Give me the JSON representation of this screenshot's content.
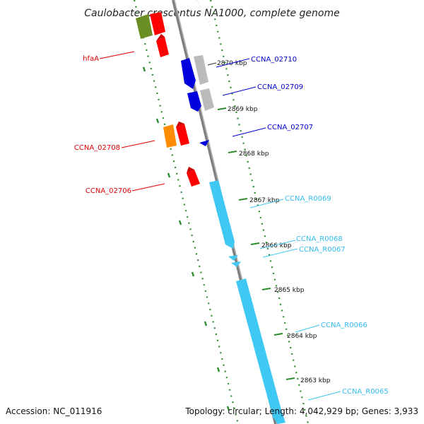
{
  "title": "Caulobacter crescentus NA1000, complete genome",
  "footer": {
    "accession": "Accession: NC_011916",
    "topology": "Topology: circular; Length: 4,042,929 bp; Genes: 3,933"
  },
  "ticks": [
    "2870 kbp",
    "2869 kbp",
    "2868 kbp",
    "2867 kbp",
    "2866 kbp",
    "2865 kbp",
    "2864 kbp",
    "2863 kbp"
  ],
  "labels": {
    "hfaA": "hfaA",
    "CCNA_02708": "CCNA_02708",
    "CCNA_02706": "CCNA_02706",
    "CCNA_02710": "CCNA_02710",
    "CCNA_02709": "CCNA_02709",
    "CCNA_02707": "CCNA_02707",
    "CCNA_R0069": "CCNA_R0069",
    "CCNA_R0068": "CCNA_R0068",
    "CCNA_R0067": "CCNA_R0067",
    "CCNA_R0066": "CCNA_R0066",
    "CCNA_R0065": "CCNA_R0065"
  },
  "colors": {
    "red": "#ff0000",
    "darkred": "#cc0000",
    "olive": "#6b8e23",
    "orange": "#ff8c00",
    "blue": "#0000dd",
    "gray": "#bbbbbb",
    "cyan": "#3fc8f4",
    "backbone": "#888888",
    "tick": "#2e8b2e"
  }
}
